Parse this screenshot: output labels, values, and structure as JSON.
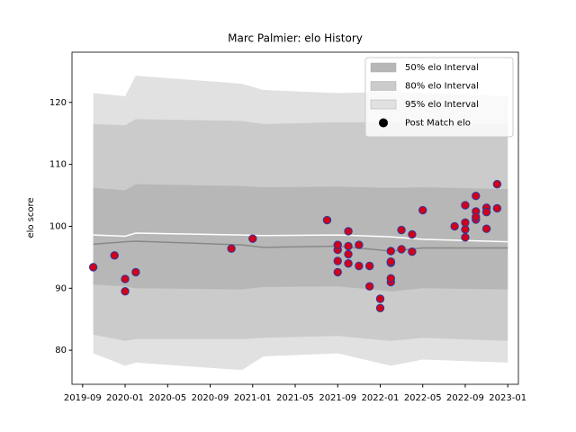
{
  "chart_data": {
    "type": "scatter",
    "title": "Marc Palmier: elo History",
    "ylabel": "elo score",
    "xlim": [
      "2019-08",
      "2023-02"
    ],
    "ylim": [
      74.5,
      128.1
    ],
    "xticks": [
      "2019-09",
      "2020-01",
      "2020-05",
      "2020-09",
      "2021-01",
      "2021-05",
      "2021-09",
      "2022-01",
      "2022-05",
      "2022-09",
      "2023-01"
    ],
    "yticks": [
      80,
      90,
      100,
      110,
      120
    ],
    "legend": "upper right",
    "bands": [
      {
        "name": "95% elo Interval",
        "color": "#e1e1e1",
        "x": [
          "2019-10",
          "2020-01",
          "2020-02",
          "2020-12",
          "2021-02",
          "2021-09",
          "2022-02",
          "2022-05",
          "2023-01"
        ],
        "upper": [
          121.5,
          121,
          124.3,
          123,
          122,
          121.5,
          121.7,
          121.5,
          121
        ],
        "lower": [
          79.5,
          77.5,
          78,
          76.8,
          79,
          79.5,
          77.5,
          78.5,
          78
        ]
      },
      {
        "name": "80% elo Interval",
        "color": "#cbcbcb",
        "x": [
          "2019-10",
          "2020-01",
          "2020-02",
          "2020-12",
          "2021-02",
          "2021-09",
          "2022-02",
          "2022-05",
          "2023-01"
        ],
        "upper": [
          116.5,
          116.3,
          117.3,
          117,
          116.5,
          116.8,
          116.8,
          116.6,
          116.5
        ],
        "lower": [
          82.5,
          81.5,
          81.8,
          81.8,
          82,
          82.3,
          81.5,
          82,
          81.5
        ]
      },
      {
        "name": "50% elo Interval",
        "color": "#b7b7b7",
        "x": [
          "2019-10",
          "2020-01",
          "2020-02",
          "2020-12",
          "2021-02",
          "2021-09",
          "2022-02",
          "2022-05",
          "2023-01"
        ],
        "upper": [
          106.2,
          105.8,
          106.8,
          106.5,
          106.3,
          106.4,
          106.2,
          106.3,
          106
        ],
        "lower": [
          90.6,
          90.3,
          90,
          89.8,
          90.2,
          90.3,
          89.5,
          90,
          89.8
        ]
      }
    ],
    "lines": [
      {
        "color": "#888888",
        "x": [
          "2019-10",
          "2020-01",
          "2020-02",
          "2020-12",
          "2021-02",
          "2021-09",
          "2022-02",
          "2022-05",
          "2023-01"
        ],
        "values": [
          97.1,
          97.5,
          97.6,
          97,
          96.6,
          96.8,
          96,
          96.5,
          96.5
        ]
      },
      {
        "color": "#ffffff",
        "x": [
          "2019-10",
          "2020-01",
          "2020-02",
          "2020-12",
          "2021-02",
          "2021-09",
          "2022-02",
          "2022-05",
          "2023-01"
        ],
        "values": [
          98.6,
          98.4,
          98.9,
          98.6,
          98.5,
          98.6,
          98.3,
          97.9,
          97.5
        ]
      }
    ],
    "series": [
      {
        "name": "Post Match elo",
        "color": "#d0021b",
        "edgecolor": "#2b3a9c",
        "legend_color": "#000000",
        "x": [
          "2019-10",
          "2019-12",
          "2020-01",
          "2020-01",
          "2020-02",
          "2020-11",
          "2021-01",
          "2021-08",
          "2021-09",
          "2021-09",
          "2021-09",
          "2021-09",
          "2021-10",
          "2021-10",
          "2021-10",
          "2021-10",
          "2021-11",
          "2021-11",
          "2021-12",
          "2021-12",
          "2022-01",
          "2022-01",
          "2022-02",
          "2022-02",
          "2022-02",
          "2022-02",
          "2022-02",
          "2022-03",
          "2022-03",
          "2022-04",
          "2022-04",
          "2022-05",
          "2022-08",
          "2022-09",
          "2022-09",
          "2022-09",
          "2022-09",
          "2022-10",
          "2022-10",
          "2022-10",
          "2022-10",
          "2022-11",
          "2022-11",
          "2022-11",
          "2022-12",
          "2022-12"
        ],
        "values": [
          93.4,
          95.3,
          91.5,
          89.5,
          92.6,
          96.4,
          98,
          101,
          96.2,
          92.6,
          94.4,
          97,
          99.2,
          95.5,
          94,
          96.8,
          93.6,
          97,
          93.6,
          90.3,
          86.8,
          88.3,
          91,
          94.1,
          96,
          94.3,
          91.6,
          96.3,
          99.4,
          95.9,
          98.7,
          102.6,
          100,
          98.2,
          99.5,
          100.6,
          103.4,
          101.1,
          104.9,
          102.4,
          101.5,
          103,
          102.3,
          99.6,
          102.9,
          106.8
        ]
      }
    ]
  }
}
